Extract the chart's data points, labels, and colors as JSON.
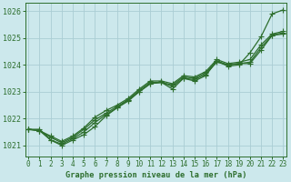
{
  "title": "Graphe pression niveau de la mer (hPa)",
  "xlabel_hours": [
    0,
    1,
    2,
    3,
    4,
    5,
    6,
    7,
    8,
    9,
    10,
    11,
    12,
    13,
    14,
    15,
    16,
    17,
    18,
    19,
    20,
    21,
    22,
    23
  ],
  "ylim": [
    1020.6,
    1026.3
  ],
  "yticks": [
    1021,
    1022,
    1023,
    1024,
    1025,
    1026
  ],
  "bg_color": "#cce8ec",
  "grid_color": "#aacdd4",
  "line_color": "#2d6e2d",
  "series": [
    [
      1021.6,
      1021.6,
      1021.2,
      1021.0,
      1021.2,
      1021.4,
      1021.7,
      1022.1,
      1022.4,
      1022.7,
      1023.0,
      1023.3,
      1023.35,
      1023.1,
      1023.5,
      1023.4,
      1023.6,
      1024.15,
      1023.95,
      1024.0,
      1024.45,
      1025.05,
      1025.9,
      1026.05
    ],
    [
      1021.6,
      1021.55,
      1021.2,
      1021.05,
      1021.25,
      1021.5,
      1021.85,
      1022.15,
      1022.4,
      1022.65,
      1023.0,
      1023.3,
      1023.35,
      1023.2,
      1023.5,
      1023.45,
      1023.65,
      1024.1,
      1024.0,
      1024.05,
      1024.05,
      1024.55,
      1025.1,
      1025.15
    ],
    [
      1021.6,
      1021.55,
      1021.3,
      1021.1,
      1021.3,
      1021.6,
      1021.95,
      1022.2,
      1022.45,
      1022.7,
      1023.05,
      1023.35,
      1023.35,
      1023.25,
      1023.55,
      1023.5,
      1023.7,
      1024.15,
      1024.0,
      1024.05,
      1024.1,
      1024.65,
      1025.1,
      1025.2
    ],
    [
      1021.6,
      1021.55,
      1021.35,
      1021.15,
      1021.35,
      1021.65,
      1022.05,
      1022.3,
      1022.5,
      1022.75,
      1023.1,
      1023.4,
      1023.4,
      1023.3,
      1023.6,
      1023.55,
      1023.75,
      1024.2,
      1024.05,
      1024.1,
      1024.2,
      1024.75,
      1025.15,
      1025.25
    ]
  ],
  "marker": "+",
  "markersize": 4,
  "linewidth": 0.9,
  "title_fontsize": 6.2,
  "tick_fontsize": 5.5,
  "ytick_fontsize": 6.0
}
